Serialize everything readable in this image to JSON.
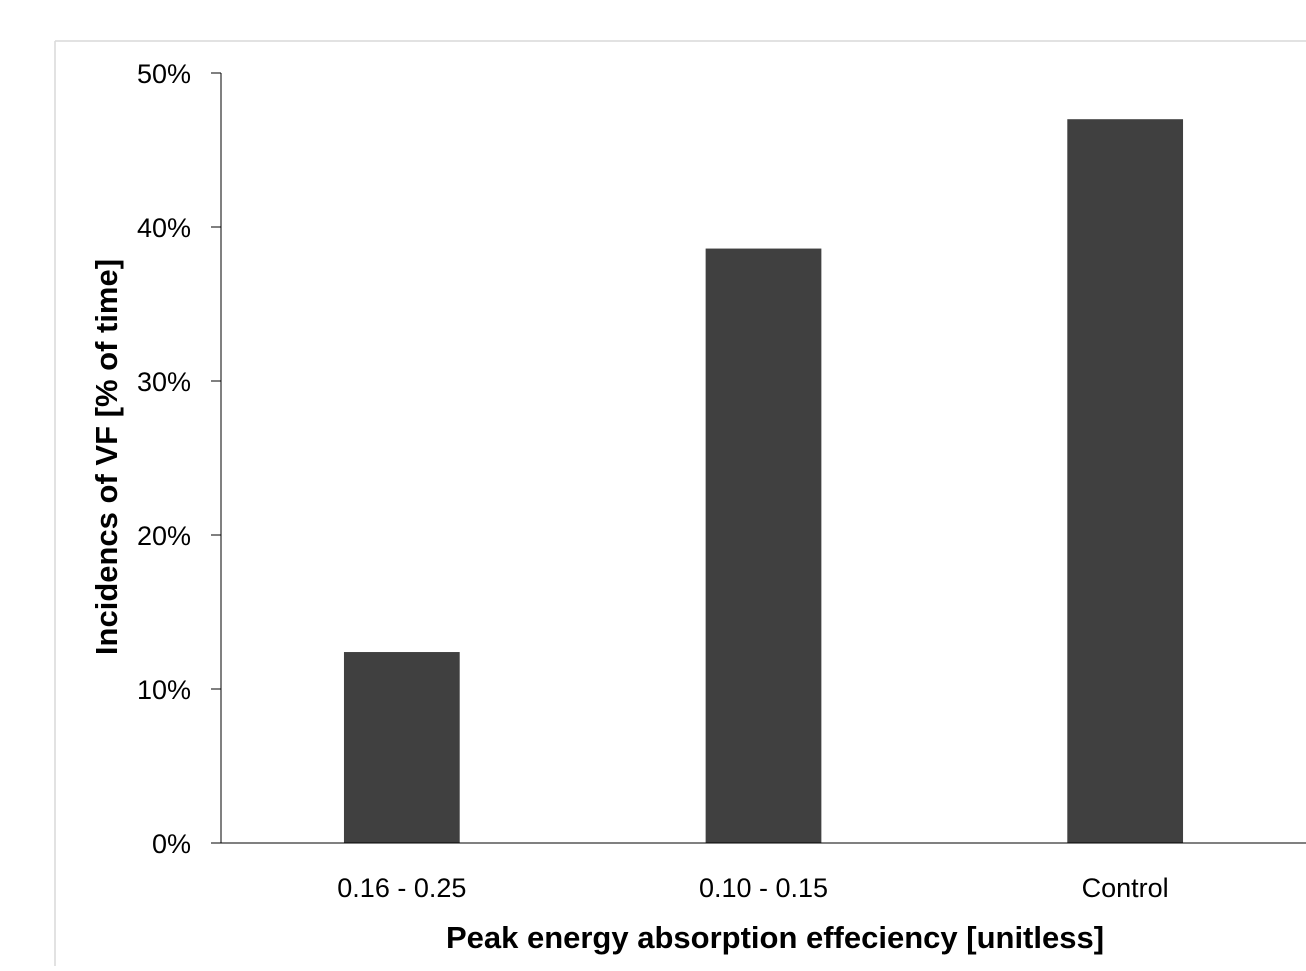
{
  "chart_data": {
    "type": "bar",
    "title": "",
    "xlabel": "Peak energy absorption effeciency [unitless]",
    "ylabel": "Incidencs of VF [% of time]",
    "categories": [
      "0.16 - 0.25",
      "0.10 - 0.15",
      "Control"
    ],
    "values": [
      12.4,
      38.6,
      47.0
    ],
    "ylim": [
      0,
      50
    ],
    "yticks": [
      0,
      10,
      20,
      30,
      40,
      50
    ],
    "ytick_labels": [
      "0%",
      "10%",
      "20%",
      "30%",
      "40%",
      "50%"
    ],
    "grid": false,
    "legend": "none",
    "colors": {
      "bar": "#404040",
      "axis": "#000000",
      "border": "#d9d9d9"
    }
  }
}
